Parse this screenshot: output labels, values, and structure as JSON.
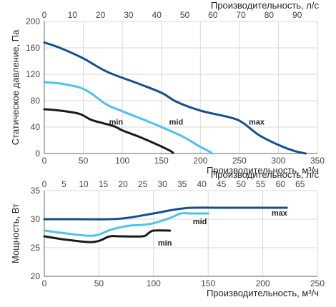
{
  "chart_data": [
    {
      "type": "line",
      "title": "",
      "xlabel": "Производительность, м³/ч",
      "ylabel": "Статическое давление, Па",
      "x2label": "Производительность, л/с",
      "xlim": [
        0,
        350
      ],
      "ylim": [
        0,
        200
      ],
      "x2lim": [
        0,
        97.2
      ],
      "x_ticks": [
        0,
        50,
        100,
        150,
        200,
        250,
        300,
        350
      ],
      "y_ticks": [
        0,
        40,
        80,
        120,
        160,
        200
      ],
      "x2_ticks": [
        0,
        10,
        20,
        30,
        40,
        50,
        60,
        70,
        80,
        90
      ],
      "grid": true,
      "series": [
        {
          "name": "max",
          "color": "#124f91",
          "label_at": [
            262,
            48
          ],
          "points": [
            [
              0,
              168
            ],
            [
              20,
              160
            ],
            [
              50,
              144
            ],
            [
              80,
              124
            ],
            [
              120,
              106
            ],
            [
              150,
              92
            ],
            [
              170,
              78
            ],
            [
              200,
              65
            ],
            [
              240,
              54
            ],
            [
              255,
              46
            ],
            [
              275,
              28
            ],
            [
              300,
              13
            ],
            [
              320,
              4
            ],
            [
              335,
              0
            ]
          ]
        },
        {
          "name": "mid",
          "color": "#4dc3ea",
          "label_at": [
            160,
            48
          ],
          "points": [
            [
              0,
              108
            ],
            [
              20,
              106
            ],
            [
              45,
              100
            ],
            [
              60,
              91
            ],
            [
              80,
              74
            ],
            [
              100,
              64
            ],
            [
              130,
              50
            ],
            [
              160,
              35
            ],
            [
              180,
              24
            ],
            [
              200,
              10
            ],
            [
              210,
              4
            ],
            [
              215,
              0
            ]
          ]
        },
        {
          "name": "min",
          "color": "#1a1a1a",
          "label_at": [
            83,
            48
          ],
          "points": [
            [
              0,
              67
            ],
            [
              20,
              65
            ],
            [
              45,
              60
            ],
            [
              60,
              51
            ],
            [
              75,
              46
            ],
            [
              90,
              41
            ],
            [
              100,
              35
            ],
            [
              120,
              26
            ],
            [
              140,
              16
            ],
            [
              160,
              5
            ],
            [
              165,
              1
            ]
          ]
        }
      ]
    },
    {
      "type": "line",
      "title": "",
      "xlabel": "Производительность, м³/ч",
      "ylabel": "Мощность, Вт",
      "x2label": "Производительность, л/с",
      "xlim": [
        0,
        250
      ],
      "ylim": [
        20,
        35
      ],
      "x2lim": [
        0,
        69.4
      ],
      "x_ticks": [
        0,
        50,
        100,
        150,
        200,
        250
      ],
      "y_ticks": [
        20,
        25,
        30,
        35
      ],
      "x2_ticks": [
        0,
        5,
        10,
        15,
        20,
        25,
        30,
        35,
        40,
        45,
        50,
        55,
        60,
        65
      ],
      "grid": true,
      "series": [
        {
          "name": "max",
          "color": "#124f91",
          "label_at": [
            208,
            31.1
          ],
          "points": [
            [
              0,
              30
            ],
            [
              30,
              30
            ],
            [
              60,
              30
            ],
            [
              75,
              30.2
            ],
            [
              100,
              31
            ],
            [
              120,
              31.7
            ],
            [
              135,
              32
            ],
            [
              160,
              32
            ],
            [
              200,
              32
            ],
            [
              222,
              32
            ]
          ]
        },
        {
          "name": "mid",
          "color": "#4dc3ea",
          "label_at": [
            136,
            29.6
          ],
          "points": [
            [
              0,
              28
            ],
            [
              20,
              27.5
            ],
            [
              40,
              27.1
            ],
            [
              50,
              27.3
            ],
            [
              60,
              28.1
            ],
            [
              70,
              28.6
            ],
            [
              80,
              28.9
            ],
            [
              90,
              29
            ],
            [
              100,
              29.3
            ],
            [
              115,
              30.2
            ],
            [
              125,
              31
            ],
            [
              135,
              31
            ],
            [
              150,
              31
            ]
          ]
        },
        {
          "name": "min",
          "color": "#1a1a1a",
          "label_at": [
            104,
            25.9
          ],
          "points": [
            [
              0,
              27
            ],
            [
              20,
              26.4
            ],
            [
              40,
              26
            ],
            [
              50,
              26.2
            ],
            [
              60,
              27
            ],
            [
              70,
              27
            ],
            [
              90,
              27
            ],
            [
              95,
              27.5
            ],
            [
              100,
              28
            ],
            [
              115,
              28
            ]
          ]
        }
      ]
    }
  ]
}
